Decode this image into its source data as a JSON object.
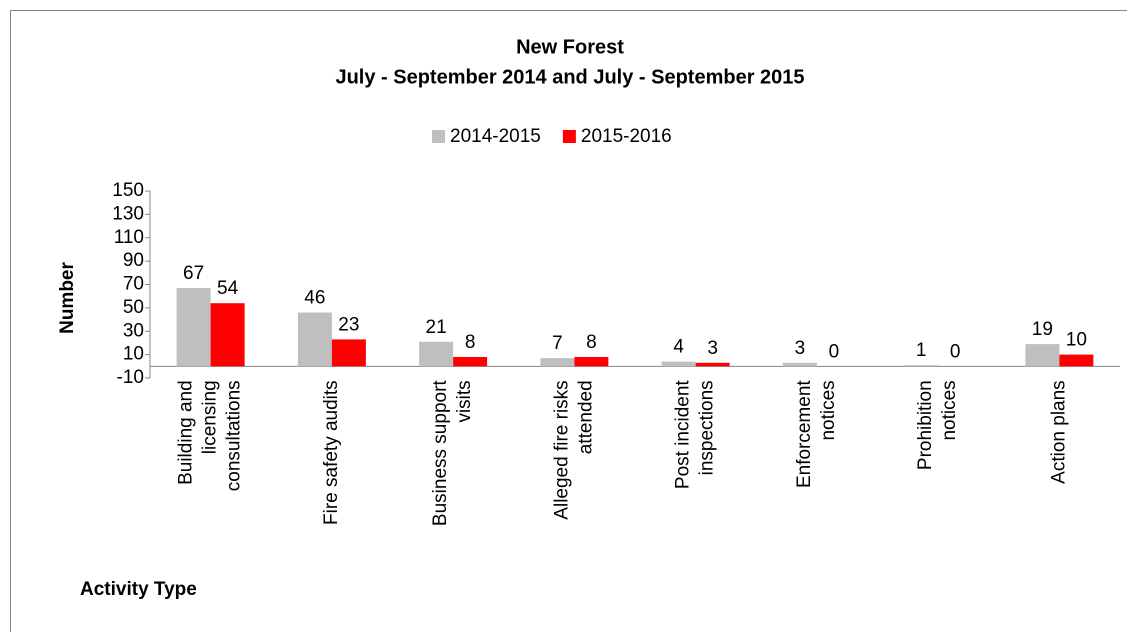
{
  "chart_data": {
    "type": "bar",
    "title": "New Forest",
    "subtitle": "July - September 2014 and July - September 2015",
    "y_label": "Number",
    "x_label": "Activity Type",
    "categories": [
      "Building and licensing consultations",
      "Fire safety audits",
      "Business support visits",
      "Alleged fire risks attended",
      "Post incident inspections",
      "Enforcement notices",
      "Prohibition notices",
      "Action plans"
    ],
    "series": [
      {
        "name": "2014-2015",
        "color": "#bfbfbf",
        "values": [
          67,
          46,
          21,
          7,
          4,
          3,
          1,
          19
        ]
      },
      {
        "name": "2015-2016",
        "color": "#ff0000",
        "values": [
          54,
          23,
          8,
          8,
          3,
          0,
          0,
          10
        ]
      }
    ],
    "ylim": [
      -10,
      150
    ],
    "yticks": [
      -10,
      10,
      30,
      50,
      70,
      90,
      110,
      130,
      150
    ],
    "legend": "top",
    "grid": false
  }
}
